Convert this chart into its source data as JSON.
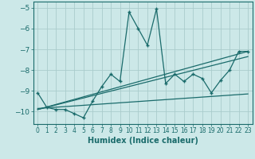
{
  "xlabel": "Humidex (Indice chaleur)",
  "background_color": "#cce8e8",
  "grid_color": "#aacccc",
  "line_color": "#1a6b6b",
  "xlim": [
    -0.5,
    23.5
  ],
  "ylim": [
    -10.6,
    -4.7
  ],
  "xticks": [
    0,
    1,
    2,
    3,
    4,
    5,
    6,
    7,
    8,
    9,
    10,
    11,
    12,
    13,
    14,
    15,
    16,
    17,
    18,
    19,
    20,
    21,
    22,
    23
  ],
  "yticks": [
    -10,
    -9,
    -8,
    -7,
    -6,
    -5
  ],
  "series": [
    [
      0,
      -9.1
    ],
    [
      1,
      -9.8
    ],
    [
      2,
      -9.9
    ],
    [
      3,
      -9.9
    ],
    [
      4,
      -10.1
    ],
    [
      5,
      -10.3
    ],
    [
      6,
      -9.5
    ],
    [
      7,
      -8.8
    ],
    [
      8,
      -8.2
    ],
    [
      9,
      -8.55
    ],
    [
      10,
      -5.2
    ],
    [
      11,
      -6.0
    ],
    [
      12,
      -6.8
    ],
    [
      13,
      -5.05
    ],
    [
      14,
      -8.65
    ],
    [
      15,
      -8.2
    ],
    [
      16,
      -8.55
    ],
    [
      17,
      -8.2
    ],
    [
      18,
      -8.4
    ],
    [
      19,
      -9.1
    ],
    [
      20,
      -8.5
    ],
    [
      21,
      -8.0
    ],
    [
      22,
      -7.1
    ],
    [
      23,
      -7.1
    ]
  ],
  "linear_series": [
    [
      [
        0,
        -9.9
      ],
      [
        23,
        -7.1
      ]
    ],
    [
      [
        0,
        -9.9
      ],
      [
        23,
        -7.35
      ]
    ],
    [
      [
        0,
        -9.85
      ],
      [
        23,
        -9.15
      ]
    ]
  ]
}
